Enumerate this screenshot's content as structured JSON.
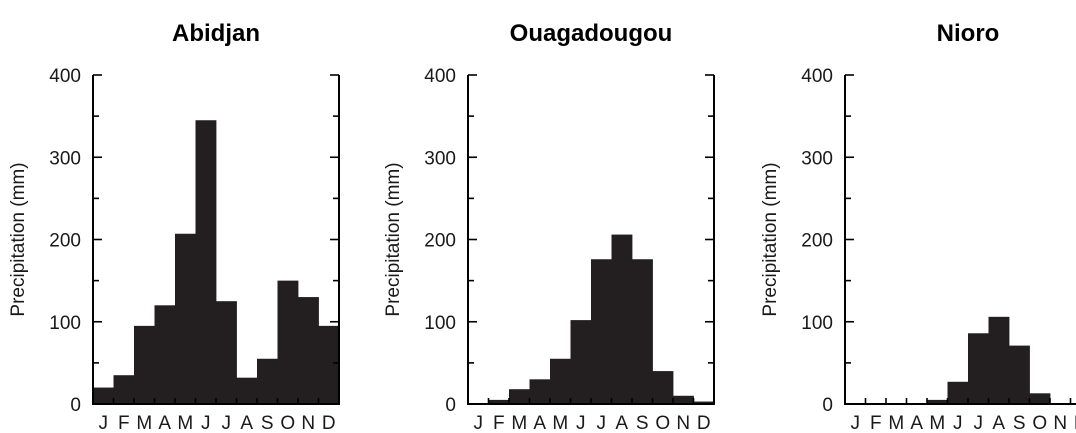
{
  "chart_data": [
    {
      "type": "bar",
      "title": "Abidjan",
      "ylabel": "Precipitation (mm)",
      "xlabel": "",
      "categories": [
        "J",
        "F",
        "M",
        "A",
        "M",
        "J",
        "J",
        "A",
        "S",
        "O",
        "N",
        "D"
      ],
      "values": [
        20,
        35,
        95,
        120,
        207,
        345,
        125,
        32,
        55,
        150,
        130,
        95
      ],
      "ylim": [
        0,
        400
      ],
      "yticks": [
        0,
        100,
        200,
        300,
        400
      ],
      "bar_color": "#231f20"
    },
    {
      "type": "bar",
      "title": "Ouagadougou",
      "ylabel": "Precipitation (mm)",
      "xlabel": "",
      "categories": [
        "J",
        "F",
        "M",
        "A",
        "M",
        "J",
        "J",
        "A",
        "S",
        "O",
        "N",
        "D"
      ],
      "values": [
        0,
        5,
        18,
        30,
        55,
        102,
        176,
        206,
        176,
        40,
        10,
        3
      ],
      "ylim": [
        0,
        400
      ],
      "yticks": [
        0,
        100,
        200,
        300,
        400
      ],
      "bar_color": "#231f20"
    },
    {
      "type": "bar",
      "title": "Nioro",
      "ylabel": "Precipitation (mm)",
      "xlabel": "",
      "categories": [
        "J",
        "F",
        "M",
        "A",
        "M",
        "J",
        "J",
        "A",
        "S",
        "O",
        "N",
        "D"
      ],
      "values": [
        0,
        0,
        0,
        0,
        5,
        27,
        86,
        106,
        71,
        13,
        0,
        0
      ],
      "ylim": [
        0,
        400
      ],
      "yticks": [
        0,
        100,
        200,
        300,
        400
      ],
      "bar_color": "#231f20"
    }
  ]
}
